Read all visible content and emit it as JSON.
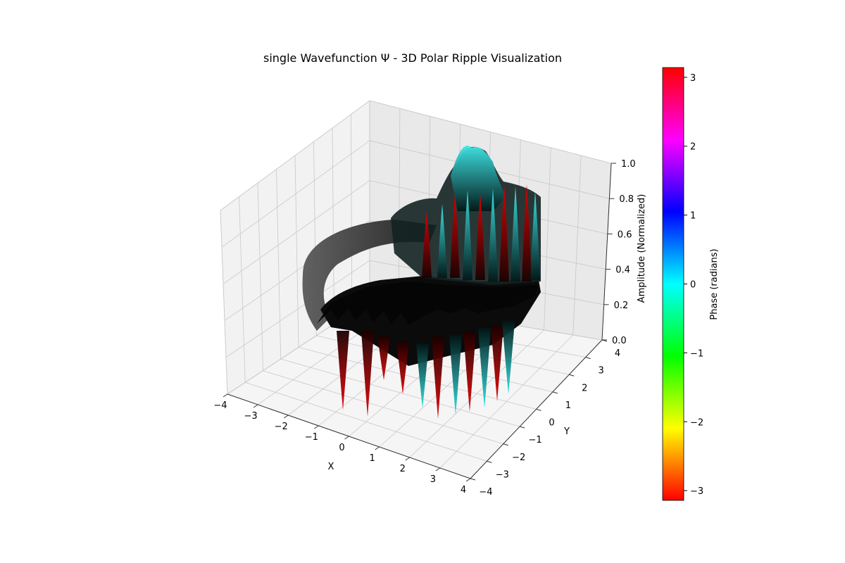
{
  "chart_data": {
    "type": "surface3d",
    "title": "single Wavefunction Ψ - 3D Polar Ripple Visualization",
    "xlabel": "X",
    "ylabel": "Y",
    "zlabel": "Amplitude (Normalized)",
    "xlim": [
      -4,
      4
    ],
    "ylim": [
      -4,
      4
    ],
    "zlim": [
      0.0,
      1.0
    ],
    "x_ticks": [
      "−4",
      "−3",
      "−2",
      "−1",
      "0",
      "1",
      "2",
      "3",
      "4"
    ],
    "y_ticks": [
      "−4",
      "−3",
      "−2",
      "−1",
      "0",
      "1",
      "2",
      "3",
      "4"
    ],
    "z_ticks": [
      "0.0",
      "0.2",
      "0.4",
      "0.6",
      "0.8",
      "1.0"
    ],
    "grid": true,
    "colorbar": {
      "label": "Phase (radians)",
      "range": [
        -3.14159,
        3.14159
      ],
      "ticks": [
        "−3",
        "−2",
        "−1",
        "0",
        "1",
        "2",
        "3"
      ],
      "colormap": "hsv",
      "colors": [
        "#ff0000",
        "#ffff00",
        "#00ff00",
        "#00ffff",
        "#0000ff",
        "#ff00ff",
        "#ff0000"
      ]
    },
    "surface_colors": {
      "negative_phase": "#cc0000",
      "positive_phase": "#22d3d3",
      "shadow": "#0a0a0a",
      "flat_region": "#3a3a3a"
    }
  }
}
